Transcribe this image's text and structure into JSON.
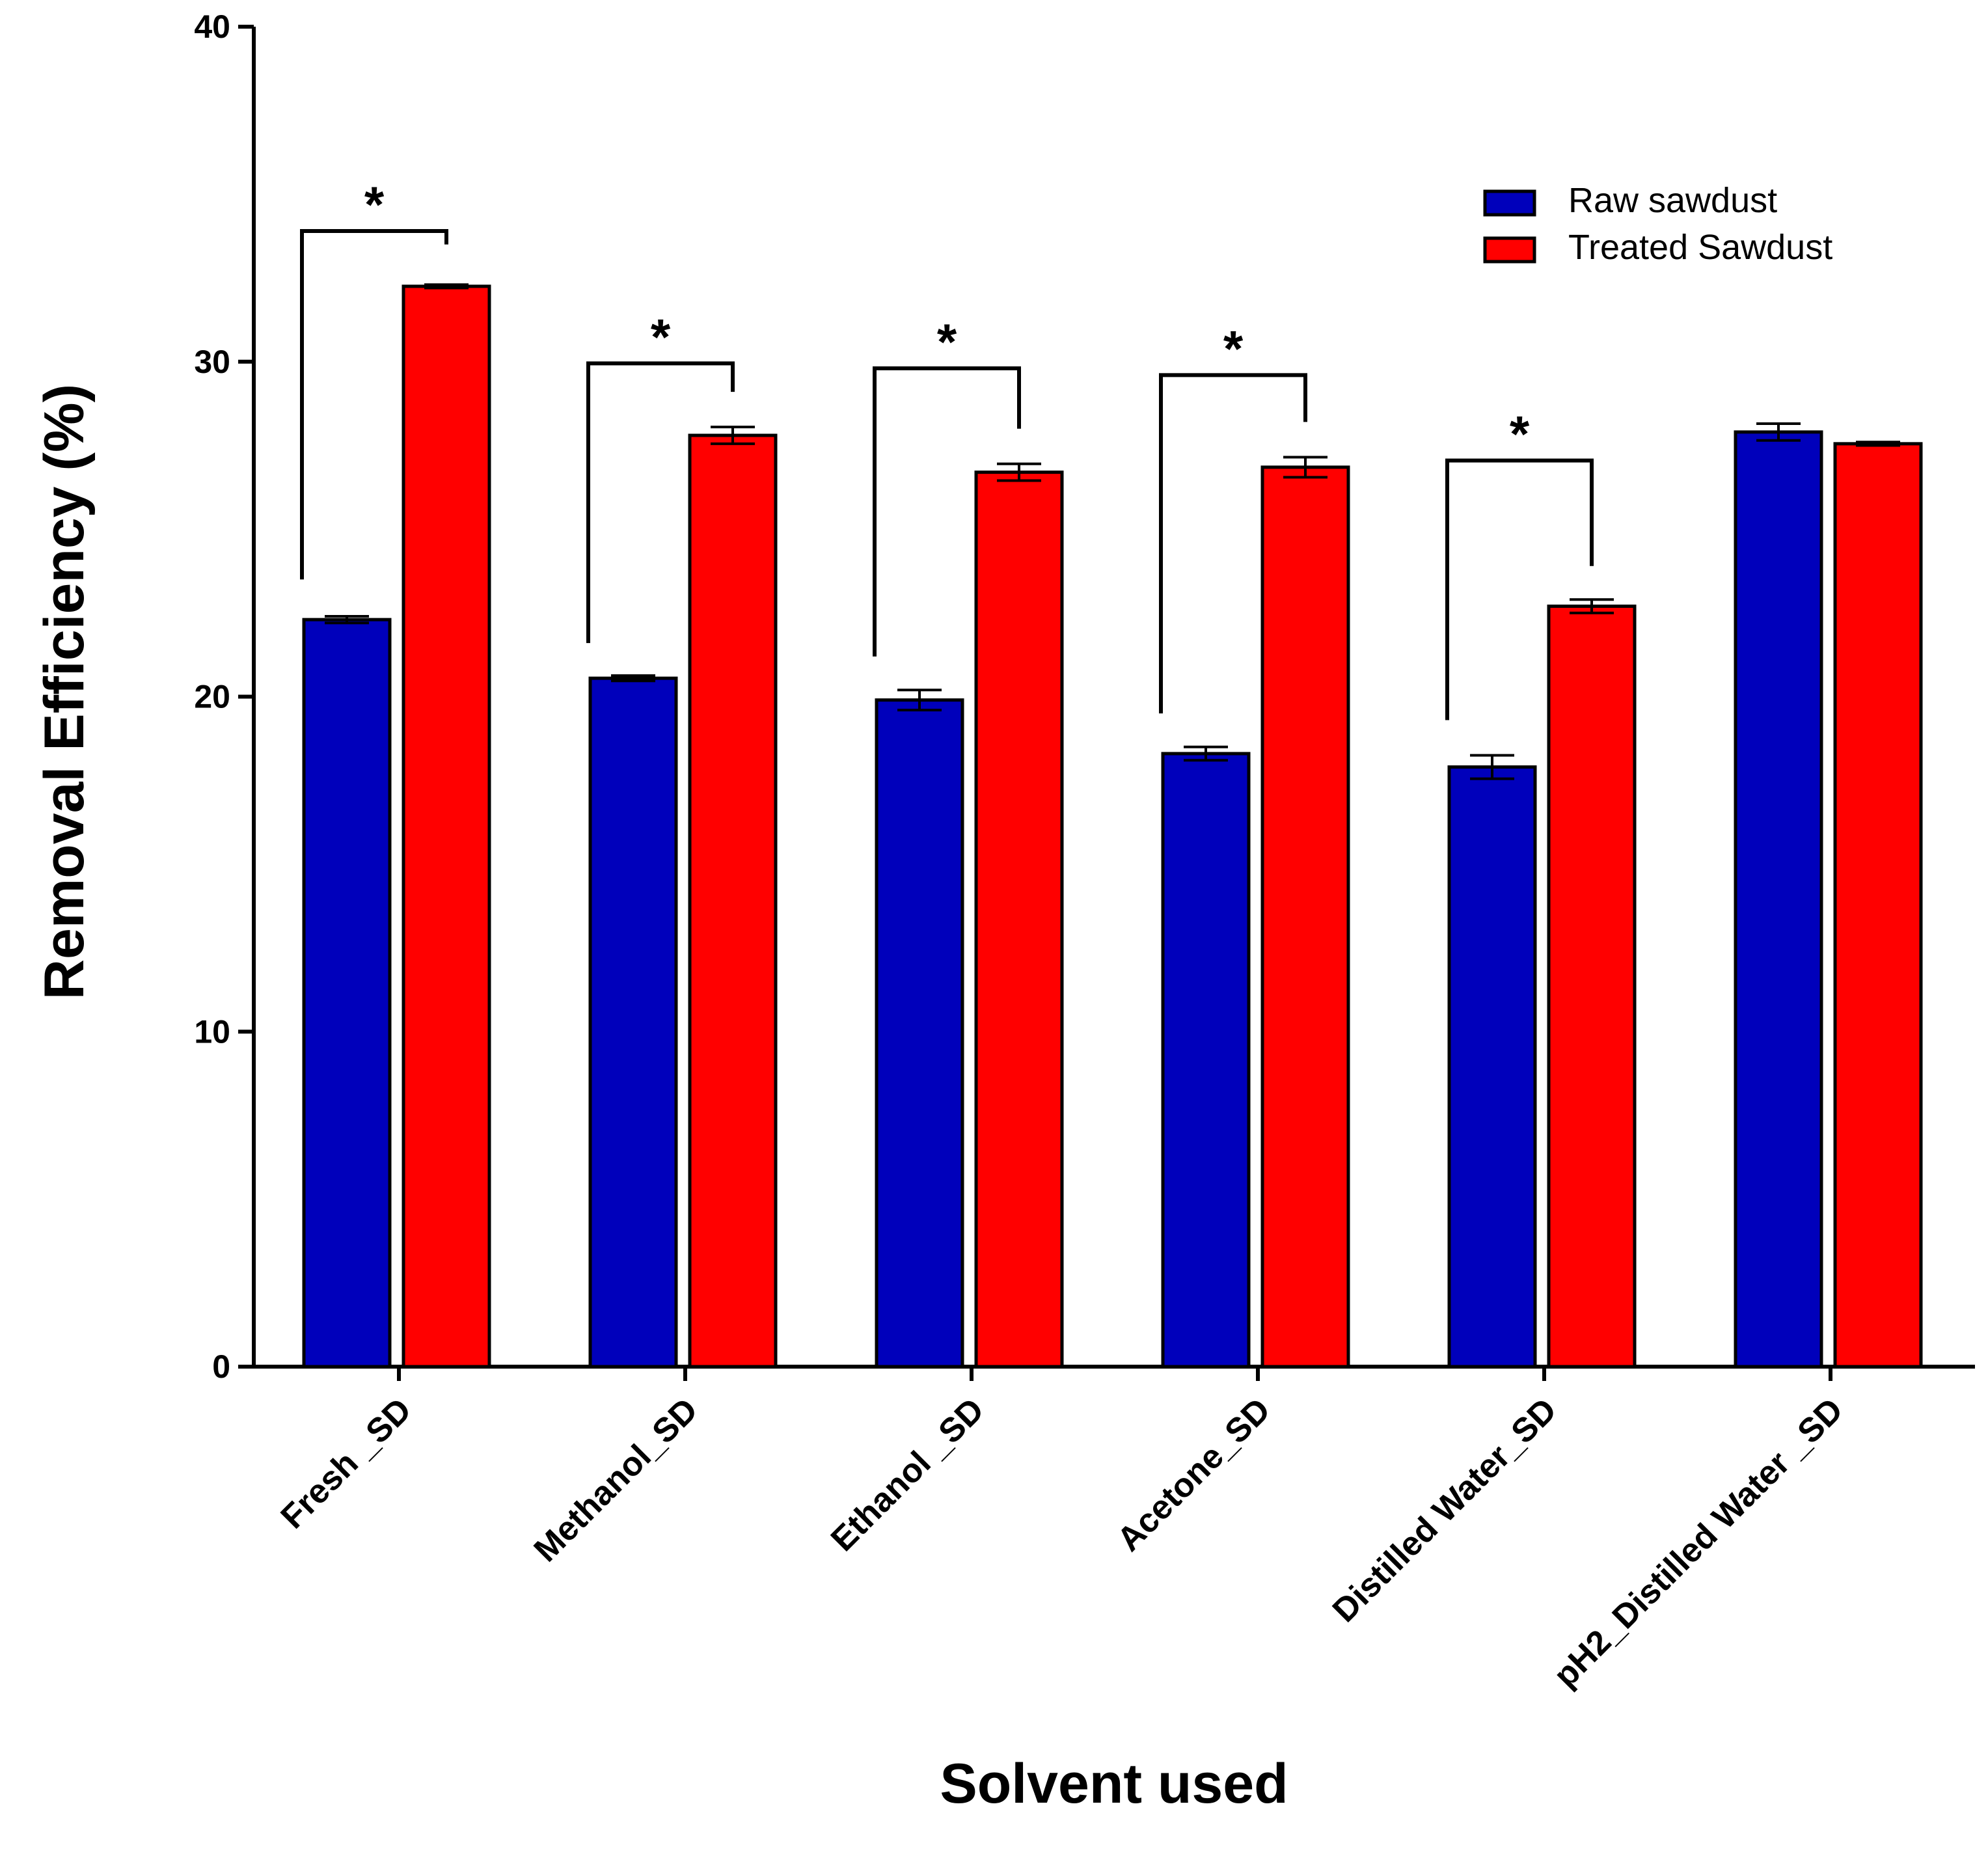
{
  "chart_data": {
    "type": "bar",
    "title": "",
    "xlabel": "Solvent used",
    "ylabel": "Removal Efficiency (%)",
    "ylim": [
      0,
      40
    ],
    "yticks": [
      0,
      10,
      20,
      30,
      40
    ],
    "grid": false,
    "legend_position": "top-right",
    "categories": [
      "Fresh _SD",
      "Methanol_SD",
      "Ethanol _SD",
      "Acetone_SD",
      "Distilled Water_SD",
      "pH2_Distilled Water _SD"
    ],
    "series": [
      {
        "name": "Raw sawdust",
        "color": "#0000bb",
        "values": [
          22.3,
          20.55,
          19.9,
          18.3,
          17.9,
          27.9
        ],
        "errors": [
          0.1,
          0.08,
          0.3,
          0.2,
          0.35,
          0.25
        ]
      },
      {
        "name": "Treated Sawdust",
        "color": "#ff0000",
        "values": [
          32.25,
          27.8,
          26.7,
          26.85,
          22.7,
          27.55
        ],
        "errors": [
          0.05,
          0.25,
          0.25,
          0.3,
          0.2,
          0.05
        ]
      }
    ],
    "significance": [
      {
        "category_index": 0,
        "label": "*",
        "bracket_top": 33.9,
        "raw_end": 23.5,
        "treated_end": 33.5
      },
      {
        "category_index": 1,
        "label": "*",
        "bracket_top": 29.95,
        "raw_end": 21.6,
        "treated_end": 29.1
      },
      {
        "category_index": 2,
        "label": "*",
        "bracket_top": 29.8,
        "raw_end": 21.2,
        "treated_end": 28.0
      },
      {
        "category_index": 3,
        "label": "*",
        "bracket_top": 29.6,
        "raw_end": 19.5,
        "treated_end": 28.2
      },
      {
        "category_index": 4,
        "label": "*",
        "bracket_top": 27.05,
        "raw_end": 19.3,
        "treated_end": 23.9
      }
    ]
  }
}
